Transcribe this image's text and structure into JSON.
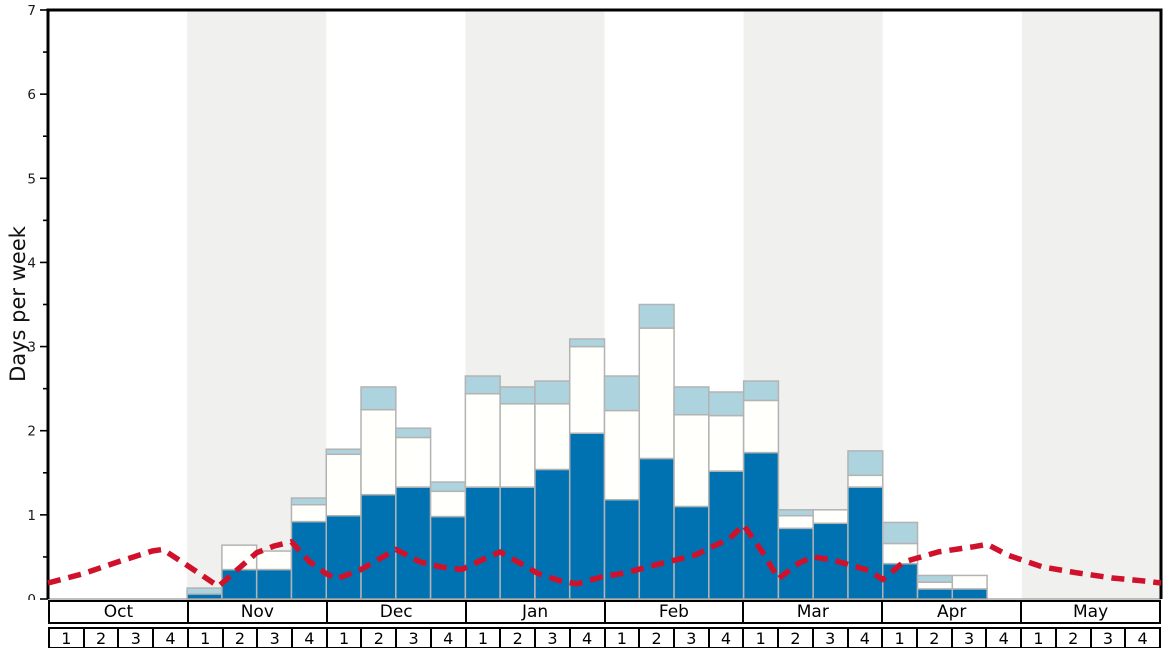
{
  "chart": {
    "y_title": "Days per week",
    "y_ticks": [
      "0",
      "1",
      "2",
      "3",
      "4",
      "5",
      "6",
      "7"
    ],
    "y_max": 7,
    "minor_tick_step": 0.5
  },
  "months": [
    {
      "label": "Oct",
      "shaded": false,
      "weeks": [
        "1",
        "2",
        "3",
        "4"
      ]
    },
    {
      "label": "Nov",
      "shaded": true,
      "weeks": [
        "1",
        "2",
        "3",
        "4"
      ]
    },
    {
      "label": "Dec",
      "shaded": false,
      "weeks": [
        "1",
        "2",
        "3",
        "4"
      ]
    },
    {
      "label": "Jan",
      "shaded": true,
      "weeks": [
        "1",
        "2",
        "3",
        "4"
      ]
    },
    {
      "label": "Feb",
      "shaded": false,
      "weeks": [
        "1",
        "2",
        "3",
        "4"
      ]
    },
    {
      "label": "Mar",
      "shaded": true,
      "weeks": [
        "1",
        "2",
        "3",
        "4"
      ]
    },
    {
      "label": "Apr",
      "shaded": false,
      "weeks": [
        "1",
        "2",
        "3",
        "4"
      ]
    },
    {
      "label": "May",
      "shaded": true,
      "weeks": [
        "1",
        "2",
        "3",
        "4"
      ]
    }
  ],
  "colors": {
    "dark_blue": "#0072b2",
    "white_bar": "#fffffb",
    "light_blue": "#add4de",
    "bar_border": "#b3b3b3",
    "band_gray": "#f0f0ee",
    "frame": "#000000",
    "zero_line": "#999999",
    "red_line": "#d0112b",
    "tick_text": "#1a1a1a"
  },
  "chart_data": {
    "type": "bar",
    "title": "",
    "xlabel": "",
    "ylabel": "Days per week",
    "ylim": [
      0,
      7
    ],
    "x_categories_months": [
      "Oct",
      "Nov",
      "Dec",
      "Jan",
      "Feb",
      "Mar",
      "Apr",
      "May"
    ],
    "weeks_per_month": 4,
    "categories": [
      "Oct-1",
      "Oct-2",
      "Oct-3",
      "Oct-4",
      "Nov-1",
      "Nov-2",
      "Nov-3",
      "Nov-4",
      "Dec-1",
      "Dec-2",
      "Dec-3",
      "Dec-4",
      "Jan-1",
      "Jan-2",
      "Jan-3",
      "Jan-4",
      "Feb-1",
      "Feb-2",
      "Feb-3",
      "Feb-4",
      "Mar-1",
      "Mar-2",
      "Mar-3",
      "Mar-4",
      "Apr-1",
      "Apr-2",
      "Apr-3",
      "Apr-4",
      "May-1",
      "May-2",
      "May-3",
      "May-4"
    ],
    "stacked": true,
    "series": [
      {
        "name": "dark-blue-segment",
        "color": "#0072b2",
        "values": [
          0,
          0,
          0,
          0,
          0.06,
          0.35,
          0.35,
          0.92,
          0.99,
          1.24,
          1.33,
          0.98,
          1.33,
          1.33,
          1.54,
          1.97,
          1.18,
          1.67,
          1.1,
          1.52,
          1.74,
          0.84,
          0.9,
          1.33,
          0.42,
          0.12,
          0.12,
          0,
          0,
          0,
          0,
          0
        ]
      },
      {
        "name": "white-segment",
        "color": "#fffffb",
        "values": [
          0,
          0,
          0,
          0,
          0,
          0.29,
          0.22,
          0.2,
          0.73,
          1.01,
          0.59,
          0.3,
          1.11,
          0.99,
          0.78,
          1.03,
          1.06,
          1.55,
          1.09,
          0.66,
          0.62,
          0.15,
          0.16,
          0.14,
          0.24,
          0.08,
          0.16,
          0,
          0,
          0,
          0,
          0
        ]
      },
      {
        "name": "light-blue-segment",
        "color": "#add4de",
        "values": [
          0,
          0,
          0,
          0,
          0.07,
          0,
          0,
          0.08,
          0.06,
          0.27,
          0.11,
          0.11,
          0.21,
          0.2,
          0.27,
          0.09,
          0.41,
          0.28,
          0.33,
          0.28,
          0.23,
          0.07,
          0,
          0.29,
          0.25,
          0.08,
          0,
          0,
          0,
          0,
          0,
          0
        ]
      }
    ],
    "line_overlay": {
      "name": "red-dashed-average-line",
      "style": "dashed",
      "color": "#d0112b",
      "x_unit": "weeks from Oct week1 start (0-32)",
      "points": [
        [
          0,
          0.19
        ],
        [
          1,
          0.3
        ],
        [
          2,
          0.44
        ],
        [
          3,
          0.57
        ],
        [
          3.3,
          0.59
        ],
        [
          4,
          0.4
        ],
        [
          4.9,
          0.15
        ],
        [
          5.5,
          0.37
        ],
        [
          6,
          0.55
        ],
        [
          6.5,
          0.63
        ],
        [
          7,
          0.68
        ],
        [
          7.5,
          0.45
        ],
        [
          8,
          0.3
        ],
        [
          8.3,
          0.24
        ],
        [
          9,
          0.35
        ],
        [
          10,
          0.59
        ],
        [
          10.7,
          0.44
        ],
        [
          11.3,
          0.38
        ],
        [
          11.9,
          0.35
        ],
        [
          12.5,
          0.47
        ],
        [
          13,
          0.56
        ],
        [
          13.6,
          0.42
        ],
        [
          14.1,
          0.3
        ],
        [
          14.7,
          0.22
        ],
        [
          15.2,
          0.18
        ],
        [
          15.9,
          0.26
        ],
        [
          16.6,
          0.31
        ],
        [
          17.6,
          0.42
        ],
        [
          18.6,
          0.52
        ],
        [
          19.6,
          0.72
        ],
        [
          20,
          0.88
        ],
        [
          20.6,
          0.52
        ],
        [
          21,
          0.24
        ],
        [
          21.6,
          0.43
        ],
        [
          22,
          0.5
        ],
        [
          22.6,
          0.46
        ],
        [
          23.6,
          0.34
        ],
        [
          24,
          0.23
        ],
        [
          24.6,
          0.44
        ],
        [
          25.6,
          0.56
        ],
        [
          26.6,
          0.62
        ],
        [
          27,
          0.65
        ],
        [
          27.6,
          0.52
        ],
        [
          28.6,
          0.38
        ],
        [
          29.6,
          0.31
        ],
        [
          30.6,
          0.25
        ],
        [
          31.6,
          0.21
        ],
        [
          32,
          0.19
        ]
      ]
    },
    "legend": "none",
    "grid": "off",
    "background_bands": "alternating months shaded gray (Nov, Jan, Mar, May)"
  }
}
